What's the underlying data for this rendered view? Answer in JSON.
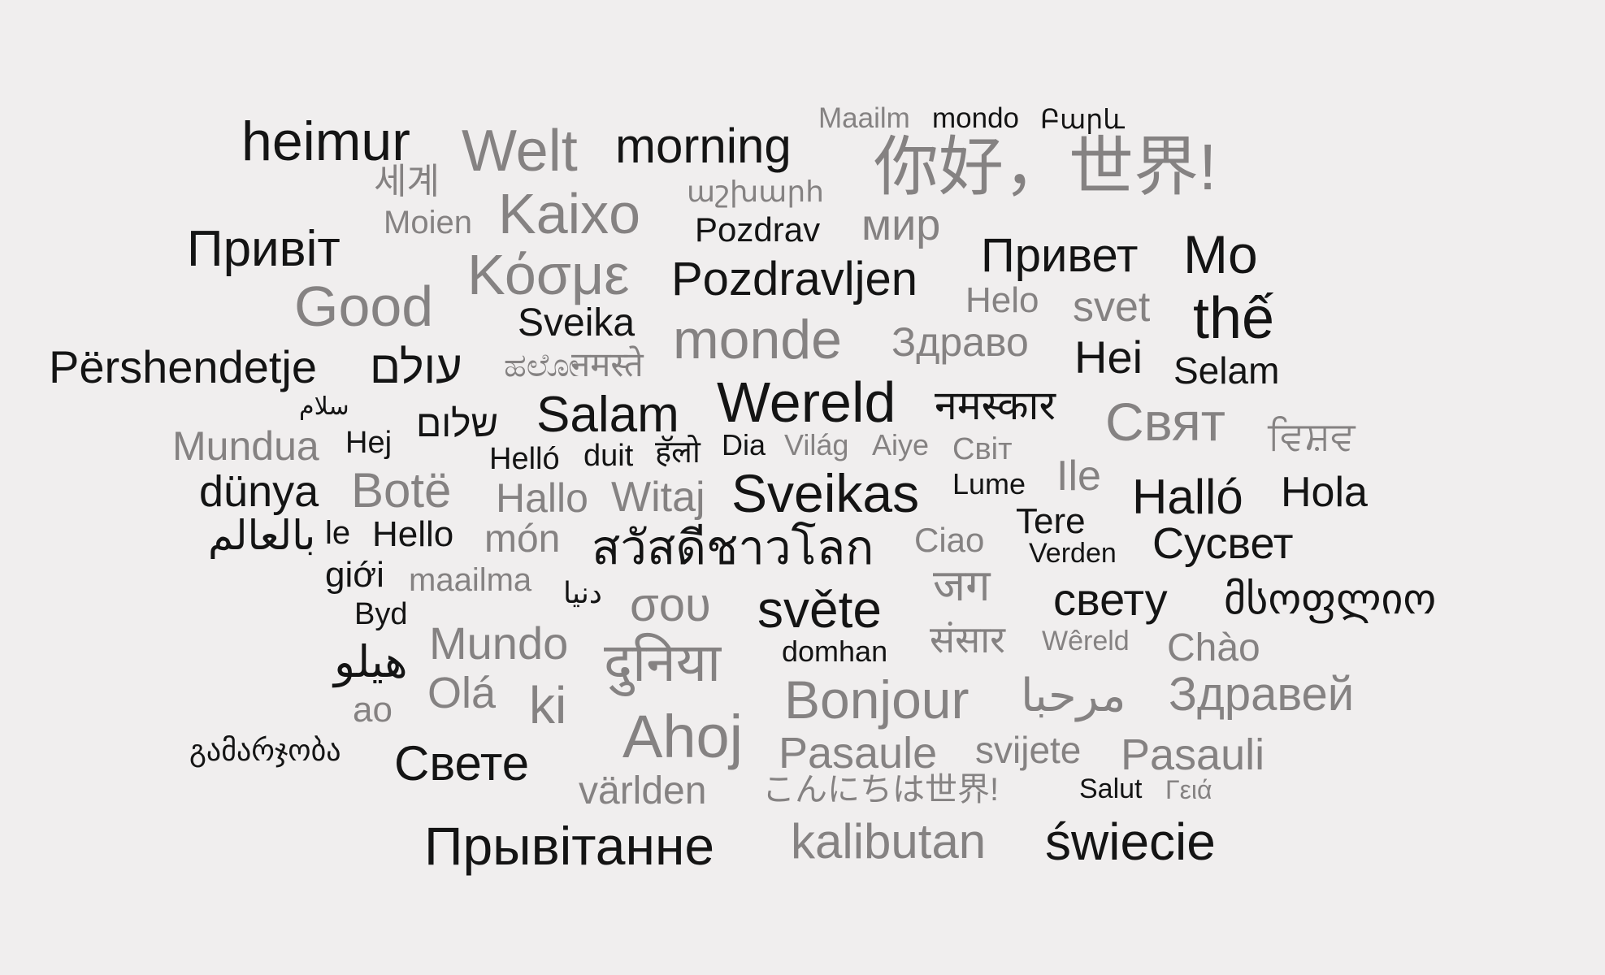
{
  "colors": {
    "background": "#f0eeee",
    "dark": "#141414",
    "gray": "#858282"
  },
  "words": [
    {
      "text": "heimur",
      "tone": "dark"
    },
    {
      "text": "Welt",
      "tone": "gray"
    },
    {
      "text": "morning",
      "tone": "dark"
    },
    {
      "text": "Maailm",
      "tone": "gray"
    },
    {
      "text": "mondo",
      "tone": "dark"
    },
    {
      "text": "Բարև",
      "tone": "dark"
    },
    {
      "text": "你好，世界!",
      "tone": "gray"
    },
    {
      "text": "세계",
      "tone": "gray"
    },
    {
      "text": "աշխարհ",
      "tone": "gray"
    },
    {
      "text": "Moien",
      "tone": "gray"
    },
    {
      "text": "Kaixo",
      "tone": "gray"
    },
    {
      "text": "Pozdrav",
      "tone": "dark"
    },
    {
      "text": "мир",
      "tone": "gray"
    },
    {
      "text": "Привіт",
      "tone": "dark"
    },
    {
      "text": "Привет",
      "tone": "dark"
    },
    {
      "text": "Mo",
      "tone": "dark"
    },
    {
      "text": "Κόσμε",
      "tone": "gray"
    },
    {
      "text": "Pozdravljen",
      "tone": "dark"
    },
    {
      "text": "Good",
      "tone": "gray"
    },
    {
      "text": "Helo",
      "tone": "gray"
    },
    {
      "text": "svet",
      "tone": "gray"
    },
    {
      "text": "thế",
      "tone": "dark"
    },
    {
      "text": "Sveika",
      "tone": "dark"
    },
    {
      "text": "monde",
      "tone": "gray"
    },
    {
      "text": "Здраво",
      "tone": "gray"
    },
    {
      "text": "Përshendetje",
      "tone": "dark"
    },
    {
      "text": "עולם",
      "tone": "dark"
    },
    {
      "text": "ಹಲೋ",
      "tone": "gray"
    },
    {
      "text": "नमस्ते",
      "tone": "gray"
    },
    {
      "text": "Hei",
      "tone": "dark"
    },
    {
      "text": "Selam",
      "tone": "dark"
    },
    {
      "text": "سلام",
      "tone": "dark"
    },
    {
      "text": "שלום",
      "tone": "dark"
    },
    {
      "text": "Salam",
      "tone": "dark"
    },
    {
      "text": "Wereld",
      "tone": "dark"
    },
    {
      "text": "नमस्कार",
      "tone": "dark"
    },
    {
      "text": "Свят",
      "tone": "gray"
    },
    {
      "text": "ਵਿਸ਼ਵ",
      "tone": "gray"
    },
    {
      "text": "Mundua",
      "tone": "gray"
    },
    {
      "text": "Hej",
      "tone": "dark"
    },
    {
      "text": "Helló",
      "tone": "dark"
    },
    {
      "text": "duit",
      "tone": "dark"
    },
    {
      "text": "हॅलो",
      "tone": "dark"
    },
    {
      "text": "Dia",
      "tone": "dark"
    },
    {
      "text": "Világ",
      "tone": "gray"
    },
    {
      "text": "Aiye",
      "tone": "gray"
    },
    {
      "text": "Світ",
      "tone": "gray"
    },
    {
      "text": "dünya",
      "tone": "dark"
    },
    {
      "text": "Botë",
      "tone": "gray"
    },
    {
      "text": "Hallo",
      "tone": "gray"
    },
    {
      "text": "Witaj",
      "tone": "gray"
    },
    {
      "text": "Sveikas",
      "tone": "dark"
    },
    {
      "text": "Lume",
      "tone": "dark"
    },
    {
      "text": "Ile",
      "tone": "gray"
    },
    {
      "text": "Halló",
      "tone": "dark"
    },
    {
      "text": "Hola",
      "tone": "dark"
    },
    {
      "text": "بالعالم",
      "tone": "dark"
    },
    {
      "text": "le",
      "tone": "dark"
    },
    {
      "text": "Hello",
      "tone": "dark"
    },
    {
      "text": "món",
      "tone": "gray"
    },
    {
      "text": "สวัสดีชาวโลก",
      "tone": "dark"
    },
    {
      "text": "Ciao",
      "tone": "gray"
    },
    {
      "text": "Tere",
      "tone": "dark"
    },
    {
      "text": "Verden",
      "tone": "dark"
    },
    {
      "text": "Сусвет",
      "tone": "dark"
    },
    {
      "text": "giới",
      "tone": "dark"
    },
    {
      "text": "maailma",
      "tone": "gray"
    },
    {
      "text": "دنیا",
      "tone": "dark"
    },
    {
      "text": "σου",
      "tone": "gray"
    },
    {
      "text": "světe",
      "tone": "dark"
    },
    {
      "text": "जग",
      "tone": "gray"
    },
    {
      "text": "свету",
      "tone": "dark"
    },
    {
      "text": "მსოფლიო",
      "tone": "dark"
    },
    {
      "text": "Byd",
      "tone": "dark"
    },
    {
      "text": "Mundo",
      "tone": "gray"
    },
    {
      "text": "दुनिया",
      "tone": "gray"
    },
    {
      "text": "domhan",
      "tone": "dark"
    },
    {
      "text": "संसार",
      "tone": "gray"
    },
    {
      "text": "Wêreld",
      "tone": "gray"
    },
    {
      "text": "Chào",
      "tone": "gray"
    },
    {
      "text": "هيلو",
      "tone": "dark"
    },
    {
      "text": "Olá",
      "tone": "gray"
    },
    {
      "text": "ki",
      "tone": "gray"
    },
    {
      "text": "Bonjour",
      "tone": "gray"
    },
    {
      "text": "مرحبا",
      "tone": "gray"
    },
    {
      "text": "Здравей",
      "tone": "gray"
    },
    {
      "text": "ao",
      "tone": "gray"
    },
    {
      "text": "Ahoj",
      "tone": "gray"
    },
    {
      "text": "გამარჯობა",
      "tone": "dark"
    },
    {
      "text": "Свете",
      "tone": "dark"
    },
    {
      "text": "Pasaule",
      "tone": "gray"
    },
    {
      "text": "svijete",
      "tone": "gray"
    },
    {
      "text": "Pasauli",
      "tone": "gray"
    },
    {
      "text": "världen",
      "tone": "gray"
    },
    {
      "text": "こんにちは世界!",
      "tone": "gray"
    },
    {
      "text": "Salut",
      "tone": "dark"
    },
    {
      "text": "Γειά",
      "tone": "gray"
    },
    {
      "text": "Прывітанне",
      "tone": "dark"
    },
    {
      "text": "kalibutan",
      "tone": "gray"
    },
    {
      "text": "świecie",
      "tone": "dark"
    }
  ]
}
